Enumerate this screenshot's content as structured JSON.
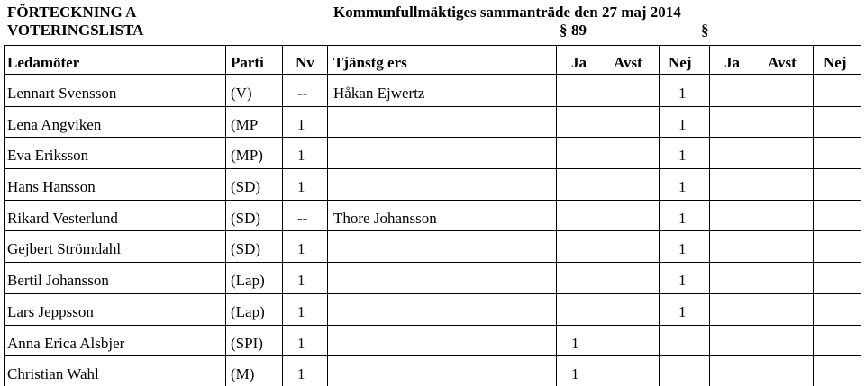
{
  "header": {
    "title_left_1": "FÖRTECKNING A",
    "title_left_2": "VOTERINGSLISTA",
    "meeting": "Kommunfullmäktiges sammanträde den 27 maj 2014",
    "paragraph_sign": "§",
    "paragraph_number": "89",
    "paragraph_sign_2": "§"
  },
  "columns": {
    "ledamoter": "Ledamöter",
    "parti": "Parti",
    "nv": "Nv",
    "tjanstg": "Tjänstg ers",
    "ja1": "Ja",
    "avst1": "Avst",
    "nej1": "Nej",
    "ja2": "Ja",
    "avst2": "Avst",
    "nej2": "Nej"
  },
  "rows": [
    {
      "name": "Lennart Svensson",
      "parti": "(V)",
      "nv": "--",
      "tjanstg": "Håkan Ejwertz",
      "ja1": "",
      "ja2": "1"
    },
    {
      "name": "Lena Angviken",
      "parti": "(MP",
      "nv": "1",
      "tjanstg": "",
      "ja1": "",
      "ja2": "1"
    },
    {
      "name": "Eva Eriksson",
      "parti": "(MP)",
      "nv": "1",
      "tjanstg": "",
      "ja1": "",
      "ja2": "1"
    },
    {
      "name": "Hans Hansson",
      "parti": "(SD)",
      "nv": "1",
      "tjanstg": "",
      "ja1": "",
      "ja2": "1"
    },
    {
      "name": "Rikard Vesterlund",
      "parti": "(SD)",
      "nv": "--",
      "tjanstg": "Thore Johansson",
      "ja1": "",
      "ja2": "1"
    },
    {
      "name": "Gejbert Strömdahl",
      "parti": "(SD)",
      "nv": "1",
      "tjanstg": "",
      "ja1": "",
      "ja2": "1"
    },
    {
      "name": "Bertil Johansson",
      "parti": "(Lap)",
      "nv": "1",
      "tjanstg": "",
      "ja1": "",
      "ja2": "1"
    },
    {
      "name": "Lars Jeppsson",
      "parti": "(Lap)",
      "nv": "1",
      "tjanstg": "",
      "ja1": "",
      "ja2": "1"
    },
    {
      "name": "Anna Erica Alsbjer",
      "parti": "(SPI)",
      "nv": "1",
      "tjanstg": "",
      "ja1": "1",
      "ja2": ""
    },
    {
      "name": "Christian Wahl",
      "parti": "(M)",
      "nv": "1",
      "tjanstg": "",
      "ja1": "1",
      "ja2": ""
    }
  ]
}
